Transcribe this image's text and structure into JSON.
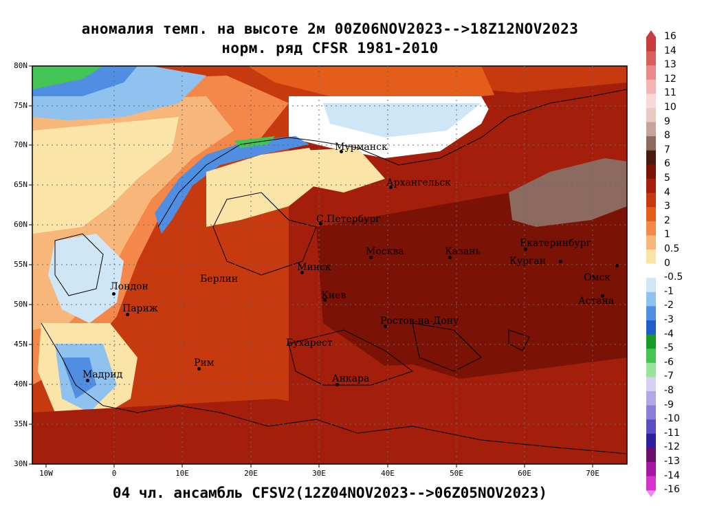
{
  "title_line1": "аномалия темп. на высоте 2м 00Z06NOV2023-->18Z12NOV2023",
  "title_line2": "норм. ряд CFSR 1981-2010",
  "footer": "04 чл. ансамбль CFSV2(12Z04NOV2023-->06Z05NOV2023)",
  "lat_labels": [
    "80N",
    "75N",
    "70N",
    "65N",
    "60N",
    "55N",
    "50N",
    "45N",
    "40N",
    "35N",
    "30N"
  ],
  "lon_labels": [
    "10W",
    "0",
    "10E",
    "20E",
    "30E",
    "40E",
    "50E",
    "60E",
    "70E"
  ],
  "cities": [
    {
      "name": "Мурманск"
    },
    {
      "name": "Архангельск"
    },
    {
      "name": "С.Петербург"
    },
    {
      "name": "Москва"
    },
    {
      "name": "Казань"
    },
    {
      "name": "Екатеринбург"
    },
    {
      "name": "Курган"
    },
    {
      "name": "Омск"
    },
    {
      "name": "Астана"
    },
    {
      "name": "Минск"
    },
    {
      "name": "Берлин"
    },
    {
      "name": "Лондон"
    },
    {
      "name": "Париж"
    },
    {
      "name": "Киев"
    },
    {
      "name": "Ростов-на-Дону"
    },
    {
      "name": "Бухарест"
    },
    {
      "name": "Рим"
    },
    {
      "name": "Мадрид"
    },
    {
      "name": "Анкара"
    }
  ],
  "colorbar": {
    "labels": [
      "16",
      "14",
      "13",
      "12",
      "11",
      "10",
      "9",
      "8",
      "7",
      "6",
      "5",
      "4",
      "3",
      "2",
      "1",
      "0.5",
      "0",
      "-0.5",
      "-1",
      "-2",
      "-3",
      "-4",
      "-5",
      "-6",
      "-7",
      "-8",
      "-9",
      "-10",
      "-11",
      "-12",
      "-13",
      "-14",
      "-16"
    ],
    "colors": [
      "#c83c3c",
      "#d95f5f",
      "#e88a8a",
      "#f3b5b5",
      "#f8d8d8",
      "#e9c9c3",
      "#c8a39c",
      "#8c6a60",
      "#4a1a10",
      "#7a1306",
      "#a31f0b",
      "#c7390f",
      "#e55d1a",
      "#f4884a",
      "#f7b67a",
      "#fbe4a8",
      "#ffffff",
      "#cfe6f7",
      "#8fc2ee",
      "#4f8ee0",
      "#1f5ec8",
      "#169b22",
      "#44c454",
      "#9be39c",
      "#d7d0f0",
      "#b2a8e6",
      "#8a7fd8",
      "#5a4ec2",
      "#2e1f9e",
      "#6c0d6c",
      "#a5169f",
      "#d433cd",
      "#f08ae8"
    ]
  }
}
